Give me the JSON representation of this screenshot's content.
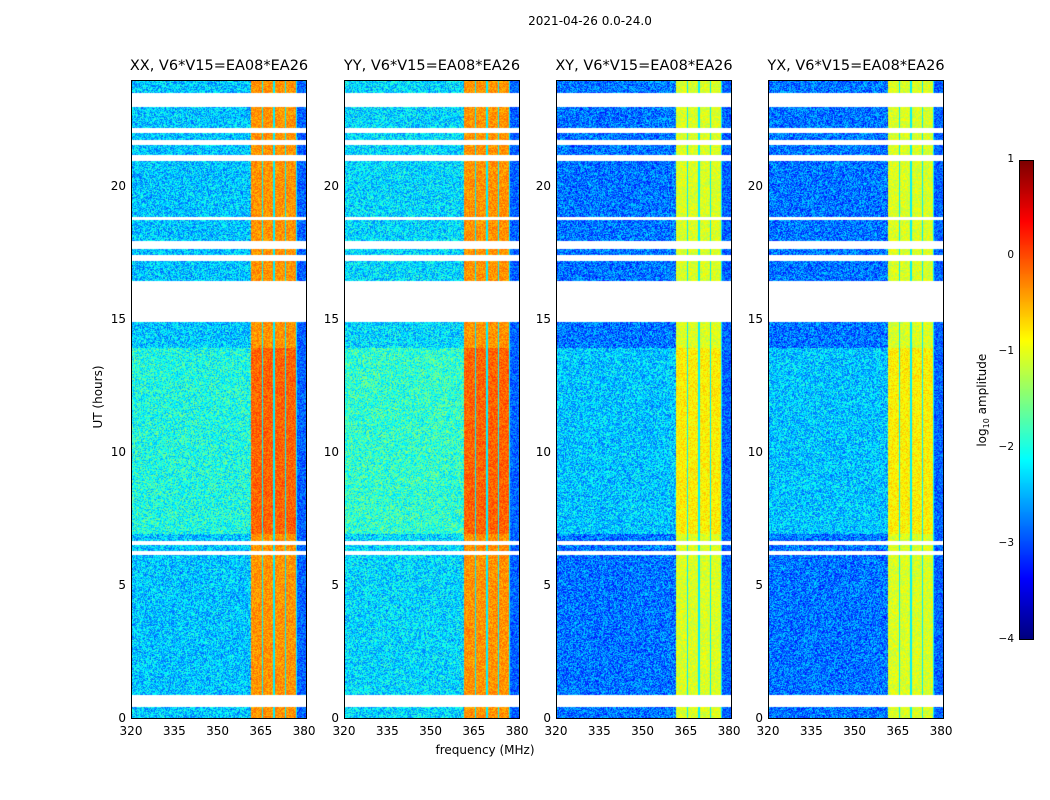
{
  "chart_data": {
    "type": "heatmap",
    "suptitle": "2021-04-26 0.0-24.0",
    "panels": [
      {
        "title": "XX, V6*V15=EA08*EA26",
        "pol": "XX"
      },
      {
        "title": "YY, V6*V15=EA08*EA26",
        "pol": "YY"
      },
      {
        "title": "XY, V6*V15=EA08*EA26",
        "pol": "XY"
      },
      {
        "title": "YX, V6*V15=EA08*EA26",
        "pol": "YX"
      }
    ],
    "xlabel": "frequency (MHz)",
    "ylabel": "UT (hours)",
    "xlim": [
      320,
      381
    ],
    "ylim": [
      0,
      24
    ],
    "xticks": [
      "320",
      "335",
      "350",
      "365",
      "380"
    ],
    "xtick_values": [
      320,
      335,
      350,
      365,
      380
    ],
    "yticks": [
      "0",
      "5",
      "10",
      "15",
      "20"
    ],
    "ytick_values": [
      0,
      5,
      10,
      15,
      20
    ],
    "colorbar": {
      "label": "log10 amplitude",
      "label_main": "log",
      "label_sub": "10",
      "label_rest": " amplitude",
      "ticks": [
        "1",
        "0",
        "−1",
        "−2",
        "−3",
        "−4"
      ],
      "tick_values": [
        1,
        0,
        -1,
        -2,
        -3,
        -4
      ],
      "range": [
        -4,
        1
      ],
      "colormap": "jet"
    },
    "rfi_band_mhz": [
      361,
      377
    ],
    "high_band_log_amp": {
      "XX": 0.0,
      "YY": 0.0,
      "XY": -0.7,
      "YX": -0.7
    },
    "background_log_amp": {
      "XX": -2.4,
      "YY": -2.3,
      "XY": -2.8,
      "YX": -2.8
    },
    "flagged_ut_hours": [
      [
        0.5,
        0.95
      ],
      [
        6.2,
        6.35
      ],
      [
        6.6,
        6.75
      ],
      [
        14.95,
        16.5
      ],
      [
        17.25,
        17.5
      ],
      [
        17.7,
        18.0
      ],
      [
        18.8,
        18.9
      ],
      [
        21.0,
        21.25
      ],
      [
        21.6,
        21.8
      ],
      [
        22.05,
        22.25
      ],
      [
        23.05,
        23.55
      ]
    ]
  }
}
